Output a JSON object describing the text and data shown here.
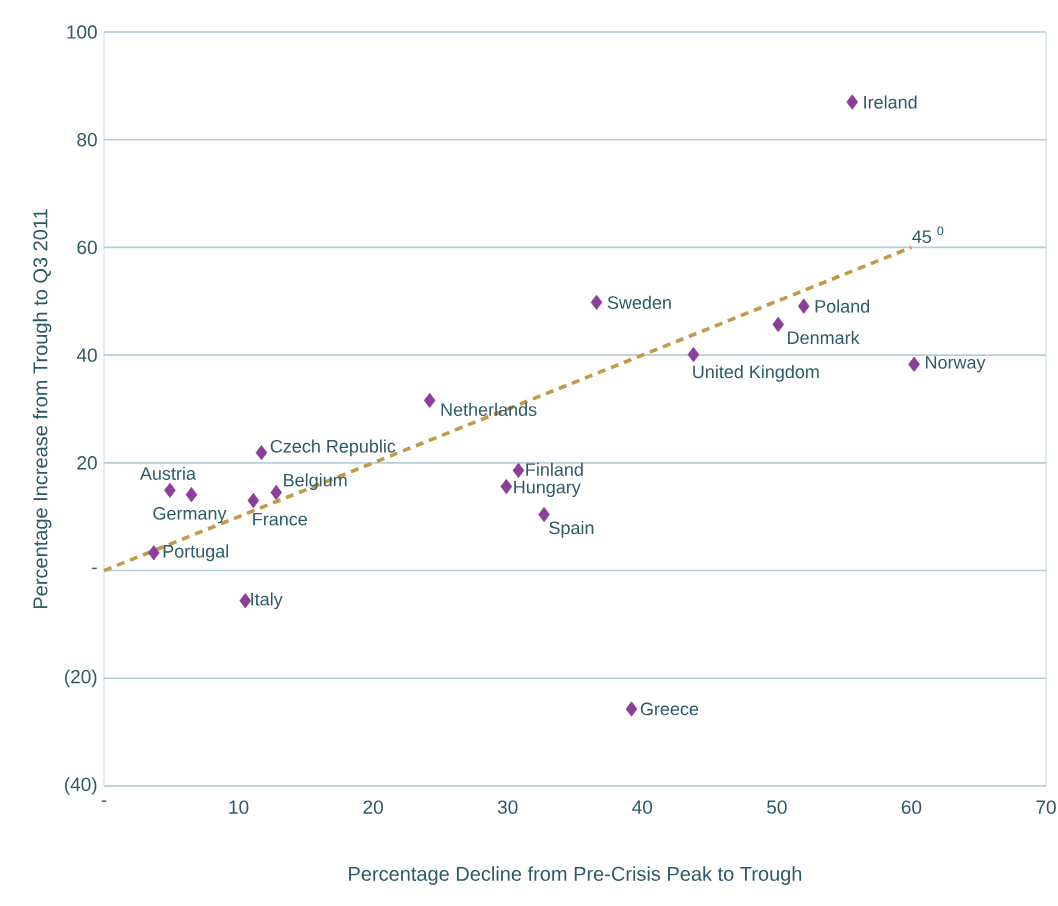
{
  "chart_data": {
    "type": "scatter",
    "xlabel": "Percentage Decline from Pre-Crisis Peak to Trough",
    "ylabel": "Percentage Increase from Trough to Q3 2011",
    "xlim": [
      0,
      70
    ],
    "ylim": [
      -40,
      100
    ],
    "xticks": [
      {
        "value": 0,
        "label": "-"
      },
      10,
      20,
      30,
      40,
      50,
      60,
      70
    ],
    "yticks": [
      {
        "value": -40,
        "label": "(40)"
      },
      {
        "value": -20,
        "label": "(20)"
      },
      {
        "value": 0,
        "label": "-"
      },
      20,
      40,
      60,
      80,
      100
    ],
    "grid": "y",
    "series": [
      {
        "color": "#8b3f98",
        "marker": "diamond",
        "x": [
          55.6,
          36.6,
          52.0,
          50.1,
          43.8,
          60.2,
          24.2,
          11.7,
          30.8,
          4.9,
          6.5,
          12.8,
          11.1,
          29.9,
          32.7,
          3.7,
          10.5,
          39.2
        ],
        "values": [
          87.0,
          49.8,
          49.1,
          45.7,
          40.1,
          38.3,
          31.6,
          21.9,
          18.6,
          14.9,
          14.1,
          14.5,
          13.0,
          15.6,
          10.4,
          3.3,
          -5.6,
          -25.7
        ]
      },
      {
        "type": "line",
        "color": "#c49a4a",
        "line_style": "dashed",
        "marker": "none",
        "x": [
          0,
          60
        ],
        "values": [
          0,
          60
        ]
      }
    ],
    "annotations": [
      {
        "text": "Ireland",
        "x": 55.6,
        "y": 87.0
      },
      {
        "text": "Sweden",
        "x": 36.6,
        "y": 49.8
      },
      {
        "text": "Poland",
        "x": 52.0,
        "y": 49.1
      },
      {
        "text": "Denmark",
        "x": 50.1,
        "y": 45.7
      },
      {
        "text": "United Kingdom",
        "x": 43.8,
        "y": 40.1
      },
      {
        "text": "Norway",
        "x": 60.2,
        "y": 38.3
      },
      {
        "text": "Netherlands",
        "x": 24.2,
        "y": 31.6
      },
      {
        "text": "Czech Republic",
        "x": 11.7,
        "y": 21.9
      },
      {
        "text": "Finland",
        "x": 30.8,
        "y": 18.6
      },
      {
        "text": "Austria",
        "x": 4.9,
        "y": 14.9
      },
      {
        "text": "Germany",
        "x": 6.5,
        "y": 14.1
      },
      {
        "text": "Belgium",
        "x": 12.8,
        "y": 14.5
      },
      {
        "text": "France",
        "x": 11.1,
        "y": 13.0
      },
      {
        "text": "Hungary",
        "x": 29.9,
        "y": 15.6
      },
      {
        "text": "Spain",
        "x": 32.7,
        "y": 10.4
      },
      {
        "text": "Portugal",
        "x": 3.7,
        "y": 3.3
      },
      {
        "text": "Italy",
        "x": 10.5,
        "y": -5.6
      },
      {
        "text": "Greece",
        "x": 39.2,
        "y": -25.7
      },
      {
        "text": "45 $^{0}$",
        "x": 60,
        "y": 60
      }
    ]
  }
}
